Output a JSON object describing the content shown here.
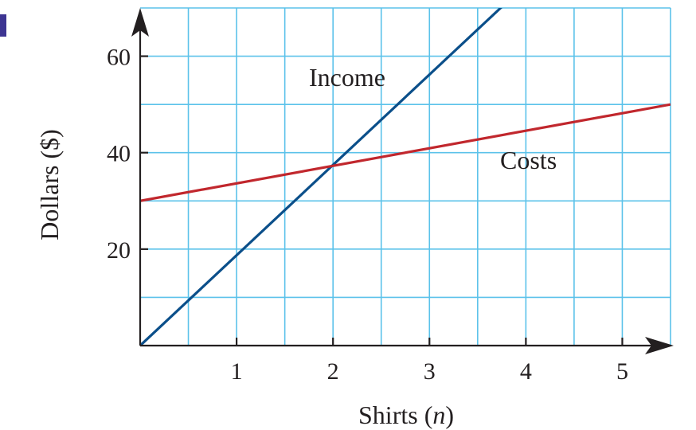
{
  "chart_data": {
    "type": "line",
    "xlabel_prefix": "Shirts (",
    "xlabel_var": "n",
    "xlabel_suffix": ")",
    "ylabel": "Dollars ($)",
    "xlim": [
      0,
      5.5
    ],
    "ylim": [
      0,
      70
    ],
    "x_ticks": [
      1,
      2,
      3,
      4,
      5
    ],
    "x_tick_labels": [
      "1",
      "2",
      "3",
      "4",
      "5"
    ],
    "y_ticks": [
      20,
      40,
      60
    ],
    "y_tick_labels": [
      "20",
      "40",
      "60"
    ],
    "grid": true,
    "grid_x_step": 0.5,
    "grid_y_step": 10,
    "series": [
      {
        "name": "Income",
        "x": [
          0,
          5.5
        ],
        "y": [
          0,
          103
        ],
        "color": "#0b4f8a"
      },
      {
        "name": "Costs",
        "x": [
          0,
          5.5
        ],
        "y": [
          30,
          50
        ],
        "color": "#c1272d"
      }
    ]
  },
  "colors": {
    "grid": "#5bc2ea",
    "axis": "#231f20",
    "corner_mark": "#3d3592"
  }
}
